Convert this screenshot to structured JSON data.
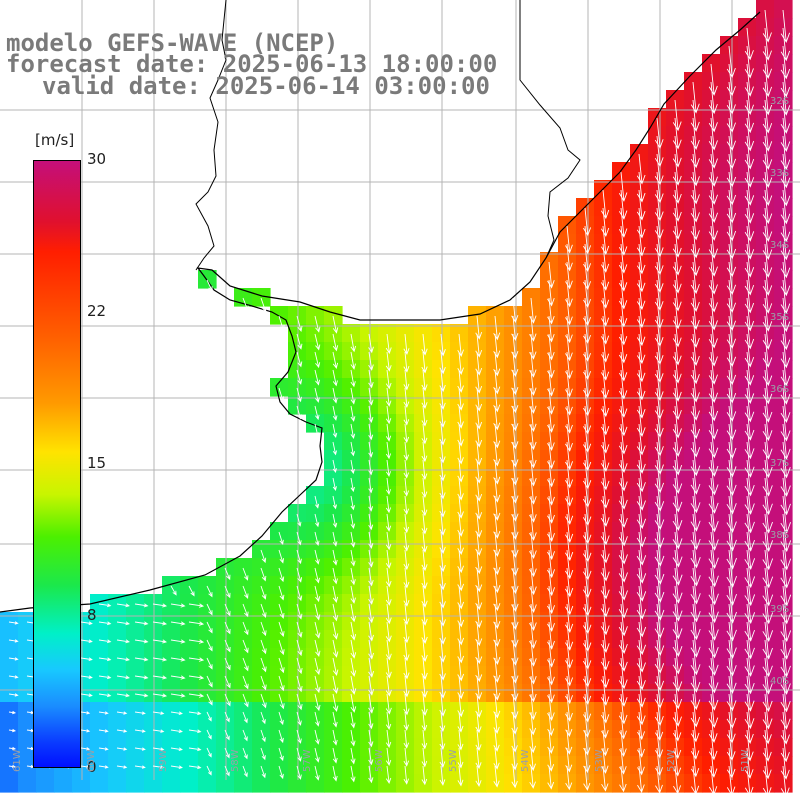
{
  "title": {
    "line1": "modelo GEFS-WAVE (NCEP)",
    "line2": "forecast date: 2025-06-13 18:00:00",
    "line3": "valid date: 2025-06-14 03:00:00"
  },
  "colorbar": {
    "unit": "[m/s]",
    "ticks": [
      {
        "label": "30",
        "value": 30
      },
      {
        "label": "22",
        "value": 22
      },
      {
        "label": "15",
        "value": 15
      },
      {
        "label": "8",
        "value": 8
      },
      {
        "label": "0",
        "value": 0
      }
    ],
    "colors": [
      "#0010ff",
      "#1a8cff",
      "#18c8ff",
      "#00f0c8",
      "#1be84b",
      "#4cf000",
      "#c8f500",
      "#ffe300",
      "#ff9a00",
      "#ff6400",
      "#ff1e00",
      "#e0102e",
      "#c40f7a"
    ]
  },
  "lat_labels": [
    "32S",
    "33S",
    "34S",
    "35S",
    "36S",
    "37S",
    "38S",
    "39S",
    "40S"
  ],
  "lon_labels": [
    "61W",
    "60W",
    "59W",
    "58W",
    "57W",
    "56W",
    "55W",
    "54W",
    "53W",
    "52W",
    "51W"
  ],
  "map": {
    "field": "wind speed",
    "units": "m/s",
    "land_color": "#ffffff",
    "coast_color": "#000000",
    "grid_color": "#b4b4b4",
    "vector_color": "#ffffff"
  }
}
